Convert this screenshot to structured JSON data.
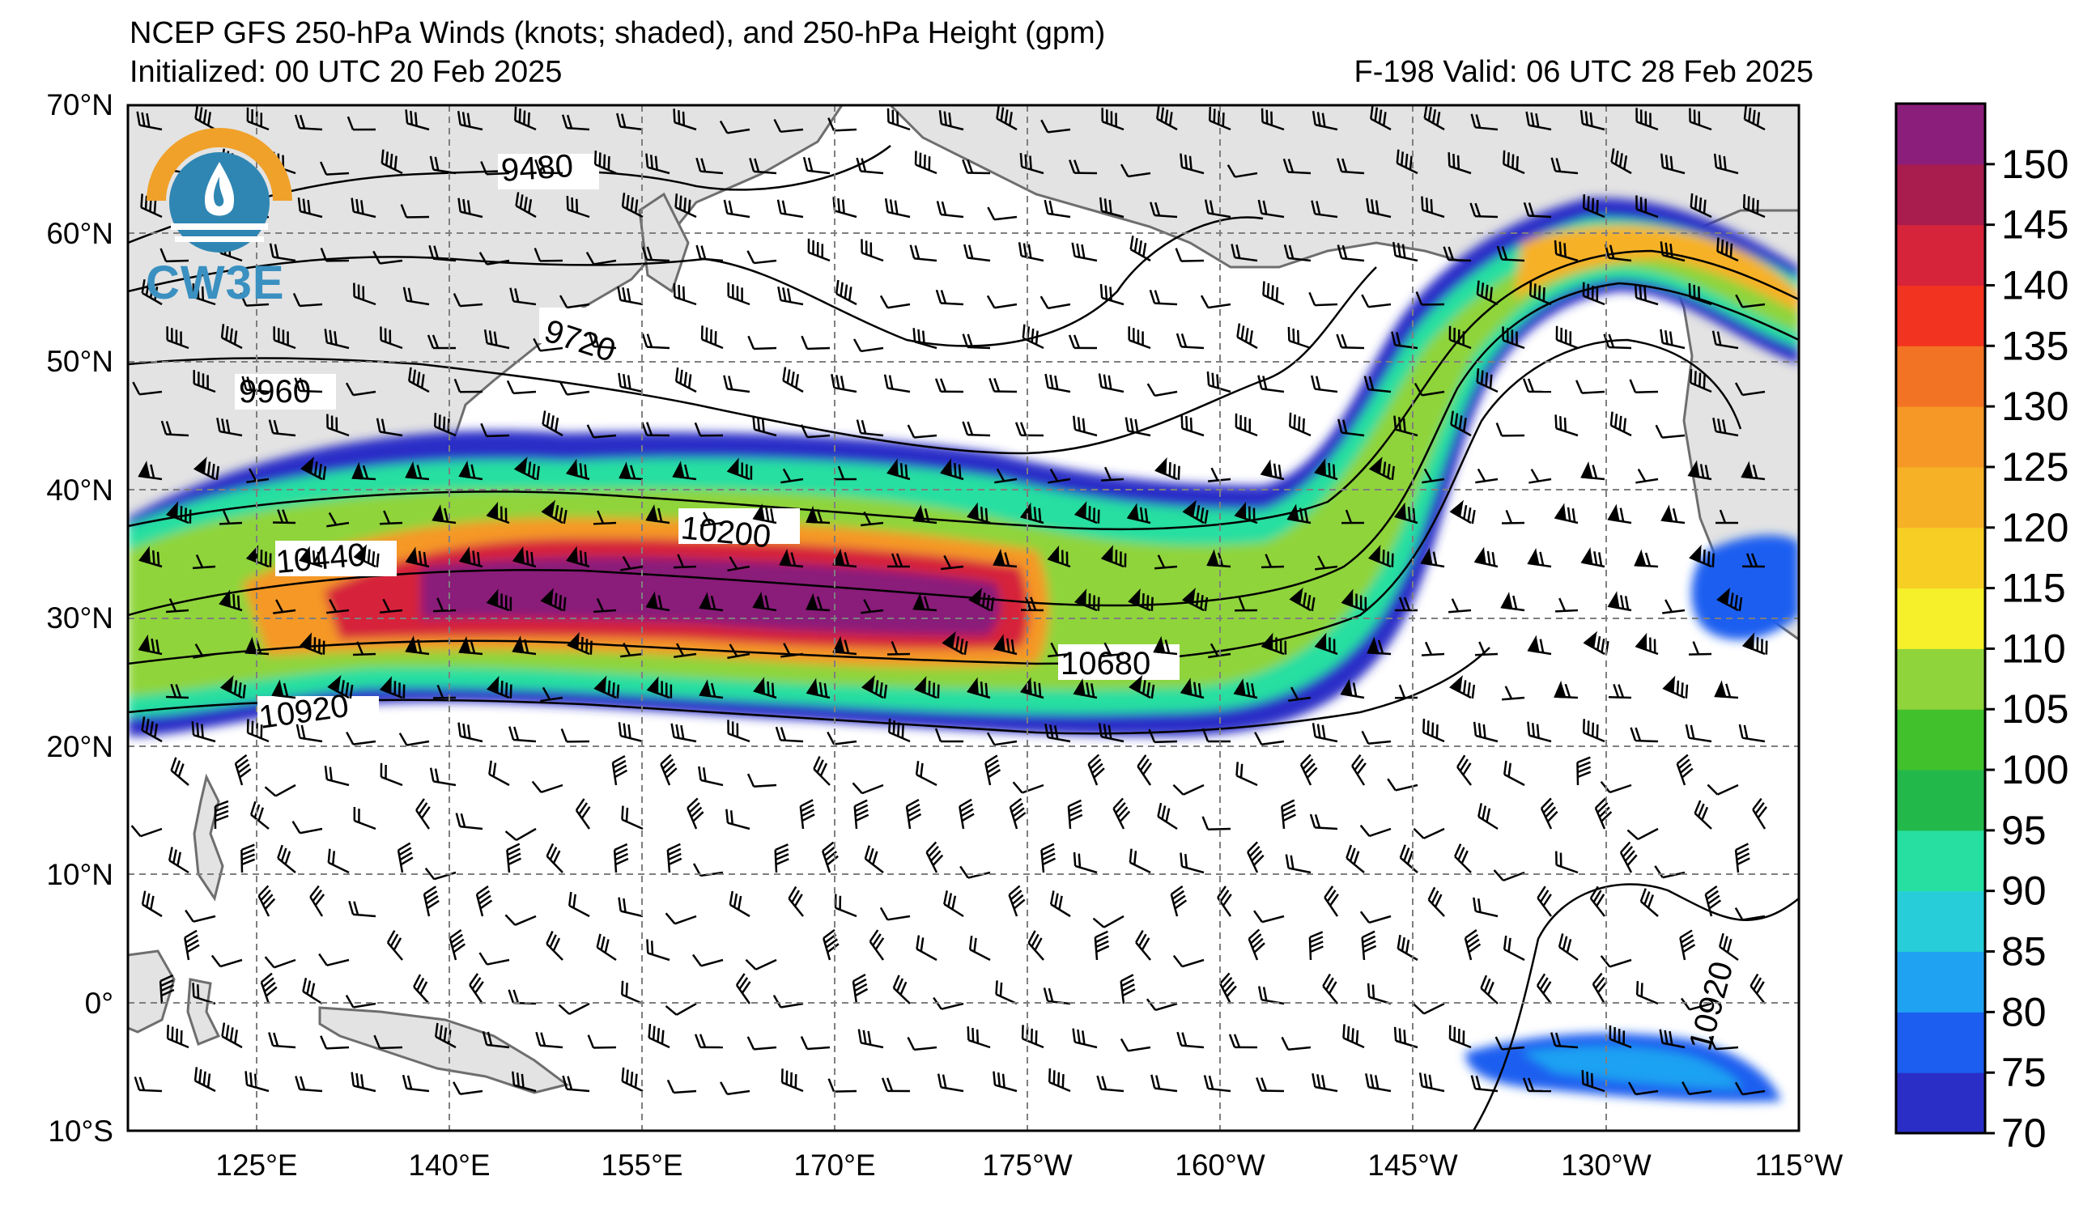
{
  "header": {
    "title": "NCEP GFS 250-hPa Winds (knots; shaded), and 250-hPa Height (gpm)",
    "initialized": "Initialized: 00 UTC 20 Feb 2025",
    "valid": "F-198  Valid: 06 UTC 28 Feb 2025"
  },
  "logo": {
    "text": "CW3E"
  },
  "map": {
    "lat_labels": [
      "70°N",
      "60°N",
      "50°N",
      "40°N",
      "30°N",
      "20°N",
      "10°N",
      "0°",
      "10°S"
    ],
    "lon_labels": [
      "125°E",
      "140°E",
      "155°E",
      "170°E",
      "175°W",
      "160°W",
      "145°W",
      "130°W",
      "115°W"
    ],
    "extent": {
      "lon_min": 115,
      "lon_max": 245,
      "lat_min": -10,
      "lat_max": 70
    },
    "land_color": "#e3e3e3",
    "coast_color": "#6e6e6e",
    "contour_labels": [
      "9480",
      "9720",
      "9960",
      "10200",
      "10440",
      "10680",
      "10920",
      "10920"
    ]
  },
  "colorbar": {
    "levels": [
      70,
      75,
      80,
      85,
      90,
      95,
      100,
      105,
      110,
      115,
      120,
      125,
      130,
      135,
      140,
      145,
      150,
      155
    ],
    "tick_labels": [
      "70",
      "75",
      "80",
      "85",
      "90",
      "95",
      "100",
      "105",
      "110",
      "115",
      "120",
      "125",
      "130",
      "135",
      "140",
      "145",
      "150"
    ],
    "colors": [
      "#2a2ec7",
      "#1b5ef0",
      "#1fa2f2",
      "#27ced9",
      "#27dfa0",
      "#23b84a",
      "#41c12c",
      "#8fd43a",
      "#f5f02a",
      "#f7ce24",
      "#f7b126",
      "#f59825",
      "#f37324",
      "#f1331f",
      "#d6243a",
      "#a81c4e",
      "#8a1e7a"
    ]
  }
}
